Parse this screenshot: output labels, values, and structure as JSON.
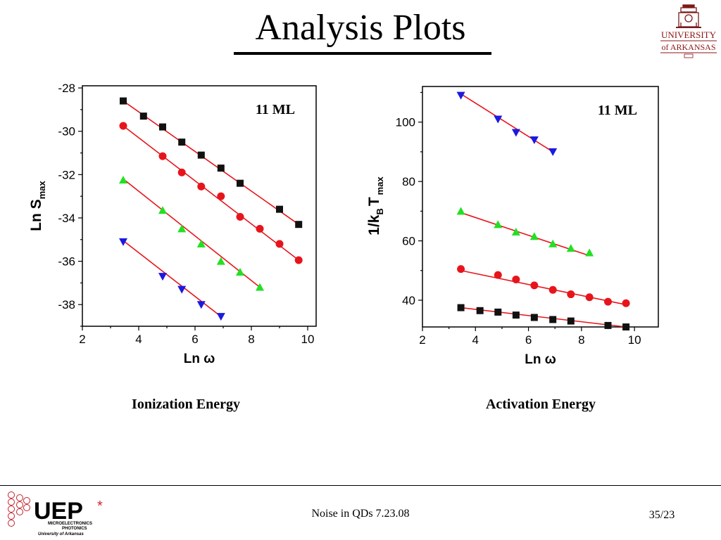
{
  "slide": {
    "title": "Analysis Plots",
    "footer": "Noise in QDs 7.23.08",
    "page": "35/23",
    "caption_left": "Ionization Energy",
    "caption_right": "Activation Energy",
    "university_logo": {
      "line1": "UNIVERSITY",
      "line2": "of ARKANSAS",
      "icon": "old-main-building-icon"
    },
    "uep_logo": {
      "main": "UEP",
      "sub1": "MICROELECTRONICS",
      "sub2": "PHOTONICS",
      "sub3": "University of Arkansas",
      "bits": "1001100011"
    }
  },
  "colors": {
    "fit": "#e8141b",
    "black": "#111111",
    "red": "#e8141b",
    "green": "#22e022",
    "blue": "#1a1ae0"
  },
  "chart_data": [
    {
      "type": "scatter",
      "annotation": "11 ML",
      "xlabel": "Ln ω",
      "ylabel": "Ln S",
      "ylabel_sub": "max",
      "xlim": [
        2,
        10.3
      ],
      "ylim": [
        -39,
        -27.9
      ],
      "xticks": [
        2,
        4,
        6,
        8,
        10
      ],
      "yticks": [
        -28,
        -30,
        -32,
        -34,
        -36,
        -38
      ],
      "series": [
        {
          "marker": "square",
          "color": "#111111",
          "x": [
            3.45,
            4.17,
            4.85,
            5.53,
            6.22,
            6.92,
            7.6,
            9.0,
            9.68
          ],
          "y": [
            -28.6,
            -29.3,
            -29.8,
            -30.5,
            -31.1,
            -31.7,
            -32.4,
            -33.6,
            -34.3
          ],
          "fit": [
            [
              3.45,
              -28.6
            ],
            [
              9.68,
              -34.3
            ]
          ]
        },
        {
          "marker": "circle",
          "color": "#e8141b",
          "x": [
            3.45,
            4.85,
            5.53,
            6.22,
            6.92,
            7.6,
            8.3,
            9.0,
            9.68
          ],
          "y": [
            -29.75,
            -31.15,
            -31.9,
            -32.55,
            -33.0,
            -33.95,
            -34.5,
            -35.2,
            -35.95
          ],
          "fit": [
            [
              3.45,
              -29.75
            ],
            [
              9.68,
              -35.95
            ]
          ]
        },
        {
          "marker": "triangle-up",
          "color": "#22e022",
          "x": [
            3.45,
            4.85,
            5.53,
            6.22,
            6.92,
            7.6,
            8.3
          ],
          "y": [
            -32.25,
            -33.65,
            -34.5,
            -35.2,
            -36.0,
            -36.5,
            -37.2
          ],
          "fit": [
            [
              3.45,
              -32.2
            ],
            [
              8.3,
              -37.2
            ]
          ]
        },
        {
          "marker": "triangle-down",
          "color": "#1a1ae0",
          "x": [
            3.45,
            4.85,
            5.53,
            6.22,
            6.92
          ],
          "y": [
            -35.1,
            -36.7,
            -37.3,
            -38.0,
            -38.55
          ],
          "fit": [
            [
              3.45,
              -35.05
            ],
            [
              6.92,
              -38.55
            ]
          ]
        }
      ]
    },
    {
      "type": "scatter",
      "annotation": "11 ML",
      "xlabel": "Ln ω",
      "ylabel": "1/k",
      "ylabel_sub": "B",
      "ylabel_mid": "T",
      "ylabel_sub2": "max",
      "xlim": [
        2,
        10.9
      ],
      "ylim": [
        31,
        112
      ],
      "xticks": [
        2,
        4,
        6,
        8,
        10
      ],
      "yticks": [
        40,
        60,
        80,
        100
      ],
      "series": [
        {
          "marker": "triangle-down",
          "color": "#1a1ae0",
          "x": [
            3.45,
            4.85,
            5.53,
            6.22,
            6.92
          ],
          "y": [
            109,
            101,
            96.5,
            94,
            90
          ],
          "fit": [
            [
              3.45,
              109.5
            ],
            [
              6.92,
              90
            ]
          ]
        },
        {
          "marker": "triangle-up",
          "color": "#22e022",
          "x": [
            3.45,
            4.85,
            5.53,
            6.22,
            6.92,
            7.6,
            8.3
          ],
          "y": [
            70,
            65.5,
            63,
            61.5,
            59,
            57.5,
            56
          ],
          "fit": [
            [
              3.45,
              69.5
            ],
            [
              8.3,
              55
            ]
          ]
        },
        {
          "marker": "circle",
          "color": "#e8141b",
          "x": [
            3.45,
            4.85,
            5.53,
            6.22,
            6.92,
            7.6,
            8.3,
            9.0,
            9.68
          ],
          "y": [
            50.5,
            48.5,
            47,
            45,
            43.5,
            42,
            41,
            39.5,
            39
          ],
          "fit": [
            [
              3.45,
              50
            ],
            [
              9.68,
              38.5
            ]
          ]
        },
        {
          "marker": "square",
          "color": "#111111",
          "x": [
            3.45,
            4.17,
            4.85,
            5.53,
            6.22,
            6.92,
            7.6,
            9.0,
            9.68
          ],
          "y": [
            37.5,
            36.5,
            36,
            35,
            34.2,
            33.5,
            33,
            31.5,
            31
          ],
          "fit": [
            [
              3.45,
              37.5
            ],
            [
              9.68,
              31
            ]
          ]
        }
      ]
    }
  ]
}
